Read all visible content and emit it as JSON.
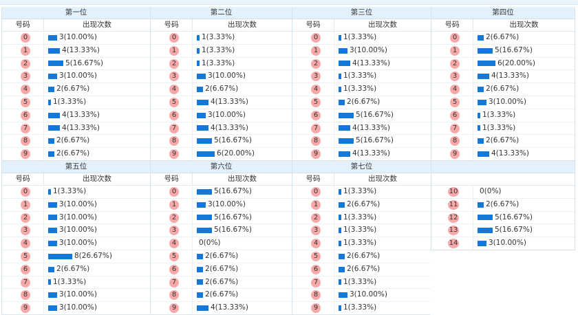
{
  "column_header": {
    "code": "号码",
    "count": "出现次数"
  },
  "bar_color": "#1479d6",
  "ball_color": "#f7a9a9",
  "blocks_row1": [
    {
      "title": "第一位",
      "rows": [
        {
          "num": "0",
          "text": "3(10.00%)",
          "frac": 0.1
        },
        {
          "num": "1",
          "text": "4(13.33%)",
          "frac": 0.1333
        },
        {
          "num": "2",
          "text": "5(16.67%)",
          "frac": 0.1667
        },
        {
          "num": "3",
          "text": "3(10.00%)",
          "frac": 0.1
        },
        {
          "num": "4",
          "text": "2(6.67%)",
          "frac": 0.0667
        },
        {
          "num": "5",
          "text": "1(3.33%)",
          "frac": 0.0333
        },
        {
          "num": "6",
          "text": "4(13.33%)",
          "frac": 0.1333
        },
        {
          "num": "7",
          "text": "4(13.33%)",
          "frac": 0.1333
        },
        {
          "num": "8",
          "text": "2(6.67%)",
          "frac": 0.0667
        },
        {
          "num": "9",
          "text": "2(6.67%)",
          "frac": 0.0667
        }
      ]
    },
    {
      "title": "第二位",
      "rows": [
        {
          "num": "0",
          "text": "1(3.33%)",
          "frac": 0.0333
        },
        {
          "num": "1",
          "text": "1(3.33%)",
          "frac": 0.0333
        },
        {
          "num": "2",
          "text": "1(3.33%)",
          "frac": 0.0333
        },
        {
          "num": "3",
          "text": "3(10.00%)",
          "frac": 0.1
        },
        {
          "num": "4",
          "text": "2(6.67%)",
          "frac": 0.0667
        },
        {
          "num": "5",
          "text": "4(13.33%)",
          "frac": 0.1333
        },
        {
          "num": "6",
          "text": "3(10.00%)",
          "frac": 0.1
        },
        {
          "num": "7",
          "text": "4(13.33%)",
          "frac": 0.1333
        },
        {
          "num": "8",
          "text": "5(16.67%)",
          "frac": 0.1667
        },
        {
          "num": "9",
          "text": "6(20.00%)",
          "frac": 0.2
        }
      ]
    },
    {
      "title": "第三位",
      "rows": [
        {
          "num": "0",
          "text": "1(3.33%)",
          "frac": 0.0333
        },
        {
          "num": "1",
          "text": "3(10.00%)",
          "frac": 0.1
        },
        {
          "num": "2",
          "text": "4(13.33%)",
          "frac": 0.1333
        },
        {
          "num": "3",
          "text": "1(3.33%)",
          "frac": 0.0333
        },
        {
          "num": "4",
          "text": "1(3.33%)",
          "frac": 0.0333
        },
        {
          "num": "5",
          "text": "2(6.67%)",
          "frac": 0.0667
        },
        {
          "num": "6",
          "text": "5(16.67%)",
          "frac": 0.1667
        },
        {
          "num": "7",
          "text": "4(13.33%)",
          "frac": 0.1333
        },
        {
          "num": "8",
          "text": "5(16.67%)",
          "frac": 0.1667
        },
        {
          "num": "9",
          "text": "4(13.33%)",
          "frac": 0.1333
        }
      ]
    },
    {
      "title": "第四位",
      "rows": [
        {
          "num": "0",
          "text": "2(6.67%)",
          "frac": 0.0667
        },
        {
          "num": "1",
          "text": "5(16.67%)",
          "frac": 0.1667
        },
        {
          "num": "2",
          "text": "6(20.00%)",
          "frac": 0.2
        },
        {
          "num": "3",
          "text": "4(13.33%)",
          "frac": 0.1333
        },
        {
          "num": "4",
          "text": "2(6.67%)",
          "frac": 0.0667
        },
        {
          "num": "5",
          "text": "3(10.00%)",
          "frac": 0.1
        },
        {
          "num": "6",
          "text": "1(3.33%)",
          "frac": 0.0333
        },
        {
          "num": "7",
          "text": "1(3.33%)",
          "frac": 0.0333
        },
        {
          "num": "8",
          "text": "2(6.67%)",
          "frac": 0.0667
        },
        {
          "num": "9",
          "text": "4(13.33%)",
          "frac": 0.1333
        }
      ]
    }
  ],
  "blocks_row2": [
    {
      "title": "第五位",
      "rows": [
        {
          "num": "0",
          "text": "1(3.33%)",
          "frac": 0.0333
        },
        {
          "num": "1",
          "text": "3(10.00%)",
          "frac": 0.1
        },
        {
          "num": "2",
          "text": "3(10.00%)",
          "frac": 0.1
        },
        {
          "num": "3",
          "text": "3(10.00%)",
          "frac": 0.1
        },
        {
          "num": "4",
          "text": "3(10.00%)",
          "frac": 0.1
        },
        {
          "num": "5",
          "text": "8(26.67%)",
          "frac": 0.2667
        },
        {
          "num": "6",
          "text": "2(6.67%)",
          "frac": 0.0667
        },
        {
          "num": "7",
          "text": "1(3.33%)",
          "frac": 0.0333
        },
        {
          "num": "8",
          "text": "3(10.00%)",
          "frac": 0.1
        },
        {
          "num": "9",
          "text": "3(10.00%)",
          "frac": 0.1
        }
      ]
    },
    {
      "title": "第六位",
      "rows": [
        {
          "num": "0",
          "text": "5(16.67%)",
          "frac": 0.1667
        },
        {
          "num": "1",
          "text": "3(10.00%)",
          "frac": 0.1
        },
        {
          "num": "2",
          "text": "5(16.67%)",
          "frac": 0.1667
        },
        {
          "num": "3",
          "text": "5(16.67%)",
          "frac": 0.1667
        },
        {
          "num": "4",
          "text": "0(0%)",
          "frac": 0
        },
        {
          "num": "5",
          "text": "2(6.67%)",
          "frac": 0.0667
        },
        {
          "num": "6",
          "text": "2(6.67%)",
          "frac": 0.0667
        },
        {
          "num": "7",
          "text": "2(6.67%)",
          "frac": 0.0667
        },
        {
          "num": "8",
          "text": "2(6.67%)",
          "frac": 0.0667
        },
        {
          "num": "9",
          "text": "4(13.33%)",
          "frac": 0.1333
        }
      ]
    },
    {
      "title": "第七位",
      "rows": [
        {
          "num": "0",
          "text": "1(3.33%)",
          "frac": 0.0333
        },
        {
          "num": "1",
          "text": "2(6.67%)",
          "frac": 0.0667
        },
        {
          "num": "2",
          "text": "1(3.33%)",
          "frac": 0.0333
        },
        {
          "num": "3",
          "text": "1(3.33%)",
          "frac": 0.0333
        },
        {
          "num": "4",
          "text": "1(3.33%)",
          "frac": 0.0333
        },
        {
          "num": "5",
          "text": "2(6.67%)",
          "frac": 0.0667
        },
        {
          "num": "6",
          "text": "2(6.67%)",
          "frac": 0.0667
        },
        {
          "num": "7",
          "text": "1(3.33%)",
          "frac": 0.0333
        },
        {
          "num": "8",
          "text": "3(10.00%)",
          "frac": 0.1
        },
        {
          "num": "9",
          "text": "1(3.33%)",
          "frac": 0.0333
        }
      ]
    }
  ],
  "extra_block": {
    "rows": [
      {
        "num": "10",
        "text": "0(0%)",
        "frac": 0
      },
      {
        "num": "11",
        "text": "2(6.67%)",
        "frac": 0.0667
      },
      {
        "num": "12",
        "text": "5(16.67%)",
        "frac": 0.1667
      },
      {
        "num": "13",
        "text": "5(16.67%)",
        "frac": 0.1667
      },
      {
        "num": "14",
        "text": "3(10.00%)",
        "frac": 0.1
      }
    ]
  }
}
